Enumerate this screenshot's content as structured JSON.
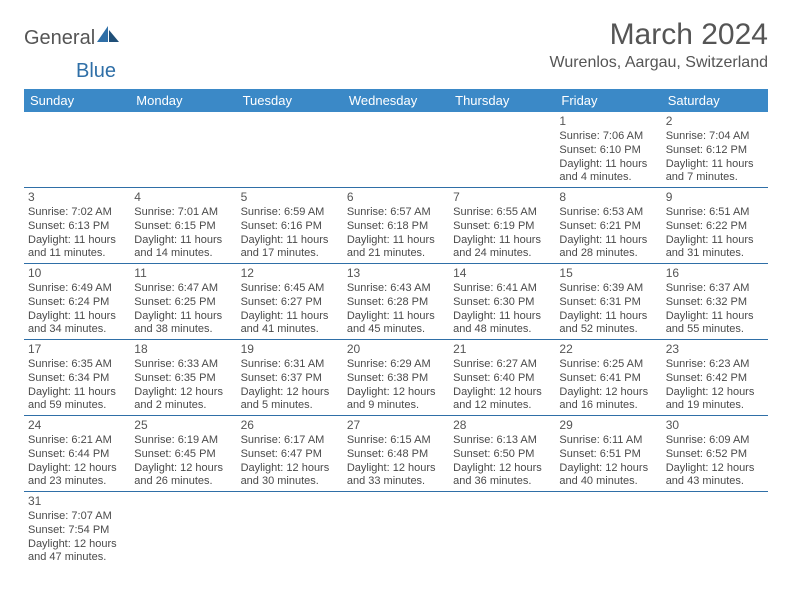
{
  "brand": {
    "general": "General",
    "blue": "Blue"
  },
  "title": {
    "month": "March 2024",
    "location": "Wurenlos, Aargau, Switzerland"
  },
  "colors": {
    "headerBg": "#3b89c7",
    "border": "#2f6fa7",
    "text": "#4a4a4a"
  },
  "weekdays": [
    "Sunday",
    "Monday",
    "Tuesday",
    "Wednesday",
    "Thursday",
    "Friday",
    "Saturday"
  ],
  "weeks": [
    [
      null,
      null,
      null,
      null,
      null,
      {
        "n": "1",
        "sr": "Sunrise: 7:06 AM",
        "ss": "Sunset: 6:10 PM",
        "d1": "Daylight: 11 hours",
        "d2": "and 4 minutes."
      },
      {
        "n": "2",
        "sr": "Sunrise: 7:04 AM",
        "ss": "Sunset: 6:12 PM",
        "d1": "Daylight: 11 hours",
        "d2": "and 7 minutes."
      }
    ],
    [
      {
        "n": "3",
        "sr": "Sunrise: 7:02 AM",
        "ss": "Sunset: 6:13 PM",
        "d1": "Daylight: 11 hours",
        "d2": "and 11 minutes."
      },
      {
        "n": "4",
        "sr": "Sunrise: 7:01 AM",
        "ss": "Sunset: 6:15 PM",
        "d1": "Daylight: 11 hours",
        "d2": "and 14 minutes."
      },
      {
        "n": "5",
        "sr": "Sunrise: 6:59 AM",
        "ss": "Sunset: 6:16 PM",
        "d1": "Daylight: 11 hours",
        "d2": "and 17 minutes."
      },
      {
        "n": "6",
        "sr": "Sunrise: 6:57 AM",
        "ss": "Sunset: 6:18 PM",
        "d1": "Daylight: 11 hours",
        "d2": "and 21 minutes."
      },
      {
        "n": "7",
        "sr": "Sunrise: 6:55 AM",
        "ss": "Sunset: 6:19 PM",
        "d1": "Daylight: 11 hours",
        "d2": "and 24 minutes."
      },
      {
        "n": "8",
        "sr": "Sunrise: 6:53 AM",
        "ss": "Sunset: 6:21 PM",
        "d1": "Daylight: 11 hours",
        "d2": "and 28 minutes."
      },
      {
        "n": "9",
        "sr": "Sunrise: 6:51 AM",
        "ss": "Sunset: 6:22 PM",
        "d1": "Daylight: 11 hours",
        "d2": "and 31 minutes."
      }
    ],
    [
      {
        "n": "10",
        "sr": "Sunrise: 6:49 AM",
        "ss": "Sunset: 6:24 PM",
        "d1": "Daylight: 11 hours",
        "d2": "and 34 minutes."
      },
      {
        "n": "11",
        "sr": "Sunrise: 6:47 AM",
        "ss": "Sunset: 6:25 PM",
        "d1": "Daylight: 11 hours",
        "d2": "and 38 minutes."
      },
      {
        "n": "12",
        "sr": "Sunrise: 6:45 AM",
        "ss": "Sunset: 6:27 PM",
        "d1": "Daylight: 11 hours",
        "d2": "and 41 minutes."
      },
      {
        "n": "13",
        "sr": "Sunrise: 6:43 AM",
        "ss": "Sunset: 6:28 PM",
        "d1": "Daylight: 11 hours",
        "d2": "and 45 minutes."
      },
      {
        "n": "14",
        "sr": "Sunrise: 6:41 AM",
        "ss": "Sunset: 6:30 PM",
        "d1": "Daylight: 11 hours",
        "d2": "and 48 minutes."
      },
      {
        "n": "15",
        "sr": "Sunrise: 6:39 AM",
        "ss": "Sunset: 6:31 PM",
        "d1": "Daylight: 11 hours",
        "d2": "and 52 minutes."
      },
      {
        "n": "16",
        "sr": "Sunrise: 6:37 AM",
        "ss": "Sunset: 6:32 PM",
        "d1": "Daylight: 11 hours",
        "d2": "and 55 minutes."
      }
    ],
    [
      {
        "n": "17",
        "sr": "Sunrise: 6:35 AM",
        "ss": "Sunset: 6:34 PM",
        "d1": "Daylight: 11 hours",
        "d2": "and 59 minutes."
      },
      {
        "n": "18",
        "sr": "Sunrise: 6:33 AM",
        "ss": "Sunset: 6:35 PM",
        "d1": "Daylight: 12 hours",
        "d2": "and 2 minutes."
      },
      {
        "n": "19",
        "sr": "Sunrise: 6:31 AM",
        "ss": "Sunset: 6:37 PM",
        "d1": "Daylight: 12 hours",
        "d2": "and 5 minutes."
      },
      {
        "n": "20",
        "sr": "Sunrise: 6:29 AM",
        "ss": "Sunset: 6:38 PM",
        "d1": "Daylight: 12 hours",
        "d2": "and 9 minutes."
      },
      {
        "n": "21",
        "sr": "Sunrise: 6:27 AM",
        "ss": "Sunset: 6:40 PM",
        "d1": "Daylight: 12 hours",
        "d2": "and 12 minutes."
      },
      {
        "n": "22",
        "sr": "Sunrise: 6:25 AM",
        "ss": "Sunset: 6:41 PM",
        "d1": "Daylight: 12 hours",
        "d2": "and 16 minutes."
      },
      {
        "n": "23",
        "sr": "Sunrise: 6:23 AM",
        "ss": "Sunset: 6:42 PM",
        "d1": "Daylight: 12 hours",
        "d2": "and 19 minutes."
      }
    ],
    [
      {
        "n": "24",
        "sr": "Sunrise: 6:21 AM",
        "ss": "Sunset: 6:44 PM",
        "d1": "Daylight: 12 hours",
        "d2": "and 23 minutes."
      },
      {
        "n": "25",
        "sr": "Sunrise: 6:19 AM",
        "ss": "Sunset: 6:45 PM",
        "d1": "Daylight: 12 hours",
        "d2": "and 26 minutes."
      },
      {
        "n": "26",
        "sr": "Sunrise: 6:17 AM",
        "ss": "Sunset: 6:47 PM",
        "d1": "Daylight: 12 hours",
        "d2": "and 30 minutes."
      },
      {
        "n": "27",
        "sr": "Sunrise: 6:15 AM",
        "ss": "Sunset: 6:48 PM",
        "d1": "Daylight: 12 hours",
        "d2": "and 33 minutes."
      },
      {
        "n": "28",
        "sr": "Sunrise: 6:13 AM",
        "ss": "Sunset: 6:50 PM",
        "d1": "Daylight: 12 hours",
        "d2": "and 36 minutes."
      },
      {
        "n": "29",
        "sr": "Sunrise: 6:11 AM",
        "ss": "Sunset: 6:51 PM",
        "d1": "Daylight: 12 hours",
        "d2": "and 40 minutes."
      },
      {
        "n": "30",
        "sr": "Sunrise: 6:09 AM",
        "ss": "Sunset: 6:52 PM",
        "d1": "Daylight: 12 hours",
        "d2": "and 43 minutes."
      }
    ],
    [
      {
        "n": "31",
        "sr": "Sunrise: 7:07 AM",
        "ss": "Sunset: 7:54 PM",
        "d1": "Daylight: 12 hours",
        "d2": "and 47 minutes."
      },
      null,
      null,
      null,
      null,
      null,
      null
    ]
  ]
}
